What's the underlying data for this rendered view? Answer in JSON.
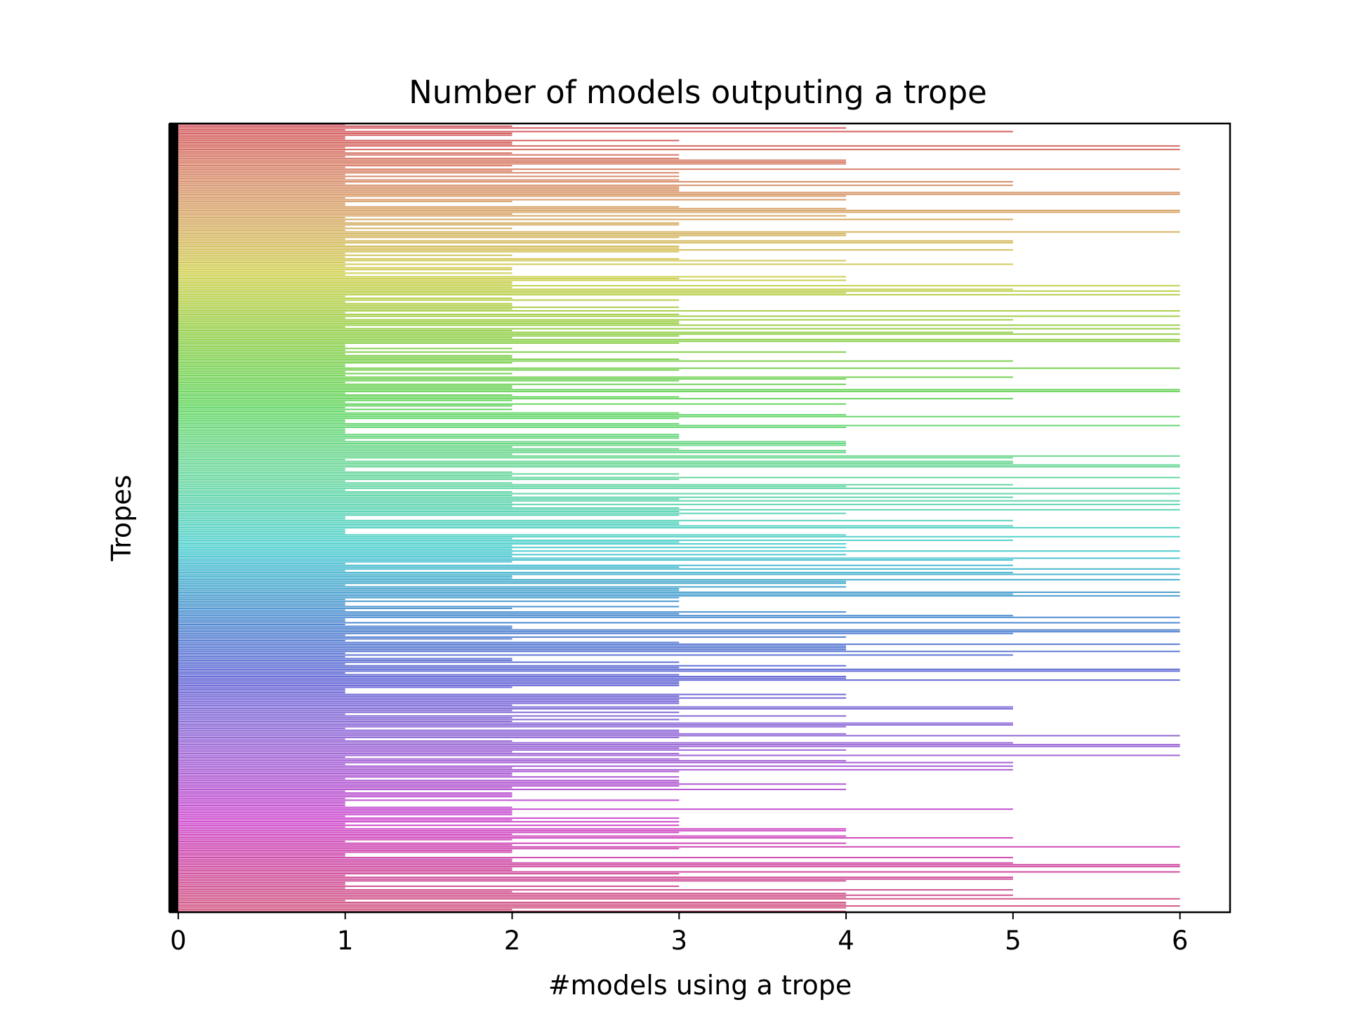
{
  "chart_data": {
    "type": "bar",
    "orientation": "horizontal",
    "title": "Number of models outputing a trope",
    "xlabel": "#models using a trope",
    "ylabel": "Tropes",
    "xlim": [
      -0.05,
      6.3
    ],
    "x_ticks": [
      0,
      1,
      2,
      3,
      4,
      5,
      6
    ],
    "y_tick_labels_visible": false,
    "grid": false,
    "legend": "none",
    "palette": "husl",
    "category_count": 440,
    "value_distribution": [
      {
        "value": 1,
        "count": 101
      },
      {
        "value": 2,
        "count": 88
      },
      {
        "value": 3,
        "count": 84
      },
      {
        "value": 4,
        "count": 62
      },
      {
        "value": 5,
        "count": 45
      },
      {
        "value": 6,
        "count": 60
      }
    ],
    "values_note": "Per-trope values (0-6) are ordered unsorted along the y-axis; each bar's hue follows its position in the palette."
  }
}
